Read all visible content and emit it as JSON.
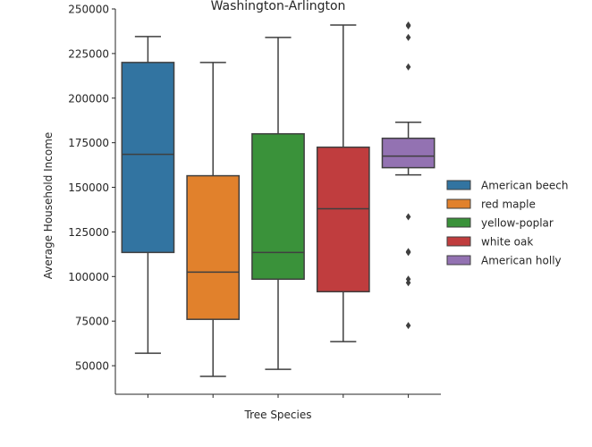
{
  "chart_data": {
    "type": "box",
    "title": "Washington-Arlington",
    "xlabel": "Tree Species",
    "ylabel": "Average Household Income",
    "ylim": [
      34000,
      250000
    ],
    "yticks": [
      50000,
      75000,
      100000,
      125000,
      150000,
      175000,
      200000,
      225000,
      250000
    ],
    "grid": false,
    "legend_position": "right",
    "series": [
      {
        "name": "American beech",
        "color": "#3274a1",
        "whisker_low": 57000,
        "q1": 113500,
        "median": 168500,
        "q3": 220000,
        "whisker_high": 234500,
        "outliers": []
      },
      {
        "name": "red maple",
        "color": "#e1812c",
        "whisker_low": 44000,
        "q1": 76000,
        "median": 102500,
        "q3": 156500,
        "whisker_high": 220000,
        "outliers": []
      },
      {
        "name": "yellow-poplar",
        "color": "#3a923a",
        "whisker_low": 48000,
        "q1": 98500,
        "median": 113500,
        "q3": 180000,
        "whisker_high": 234000,
        "outliers": []
      },
      {
        "name": "white oak",
        "color": "#c03d3e",
        "whisker_low": 63500,
        "q1": 91500,
        "median": 138000,
        "q3": 172500,
        "whisker_high": 241000,
        "outliers": []
      },
      {
        "name": "American holly",
        "color": "#9372b2",
        "whisker_low": 157000,
        "q1": 161000,
        "median": 167500,
        "q3": 177500,
        "whisker_high": 186500,
        "outliers": [
          241000,
          240500,
          234000,
          217500,
          133500,
          114000,
          113500,
          98500,
          96500,
          72500
        ]
      }
    ]
  }
}
